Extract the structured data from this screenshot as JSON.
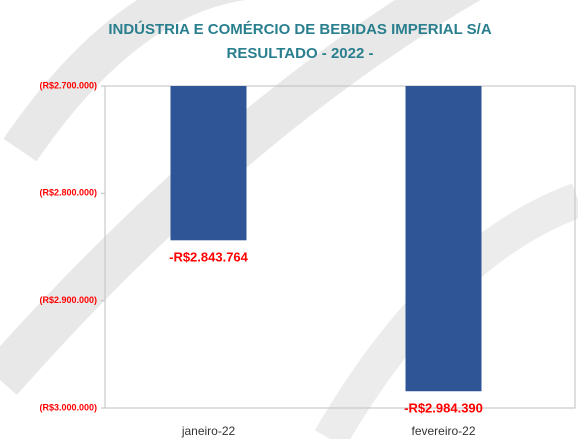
{
  "chart_data": {
    "type": "bar",
    "title": [
      "INDÚSTRIA E COMÉRCIO DE BEBIDAS IMPERIAL S/A",
      "RESULTADO - 2022 -"
    ],
    "categories": [
      "janeiro-22",
      "fevereiro-22"
    ],
    "values": [
      -2843764,
      -2984390
    ],
    "value_labels": [
      "-R$2.843.764",
      "-R$2.984.390"
    ],
    "color": "#2f5597",
    "ylim": [
      -3000000,
      -2700000
    ],
    "yticks": [
      {
        "value": -2700000,
        "label": "(R$2.700.000)"
      },
      {
        "value": -2800000,
        "label": "(R$2.800.000)"
      },
      {
        "value": -2900000,
        "label": "(R$2.900.000)"
      },
      {
        "value": -3000000,
        "label": "(R$3.000.000)"
      }
    ],
    "grid": false
  }
}
